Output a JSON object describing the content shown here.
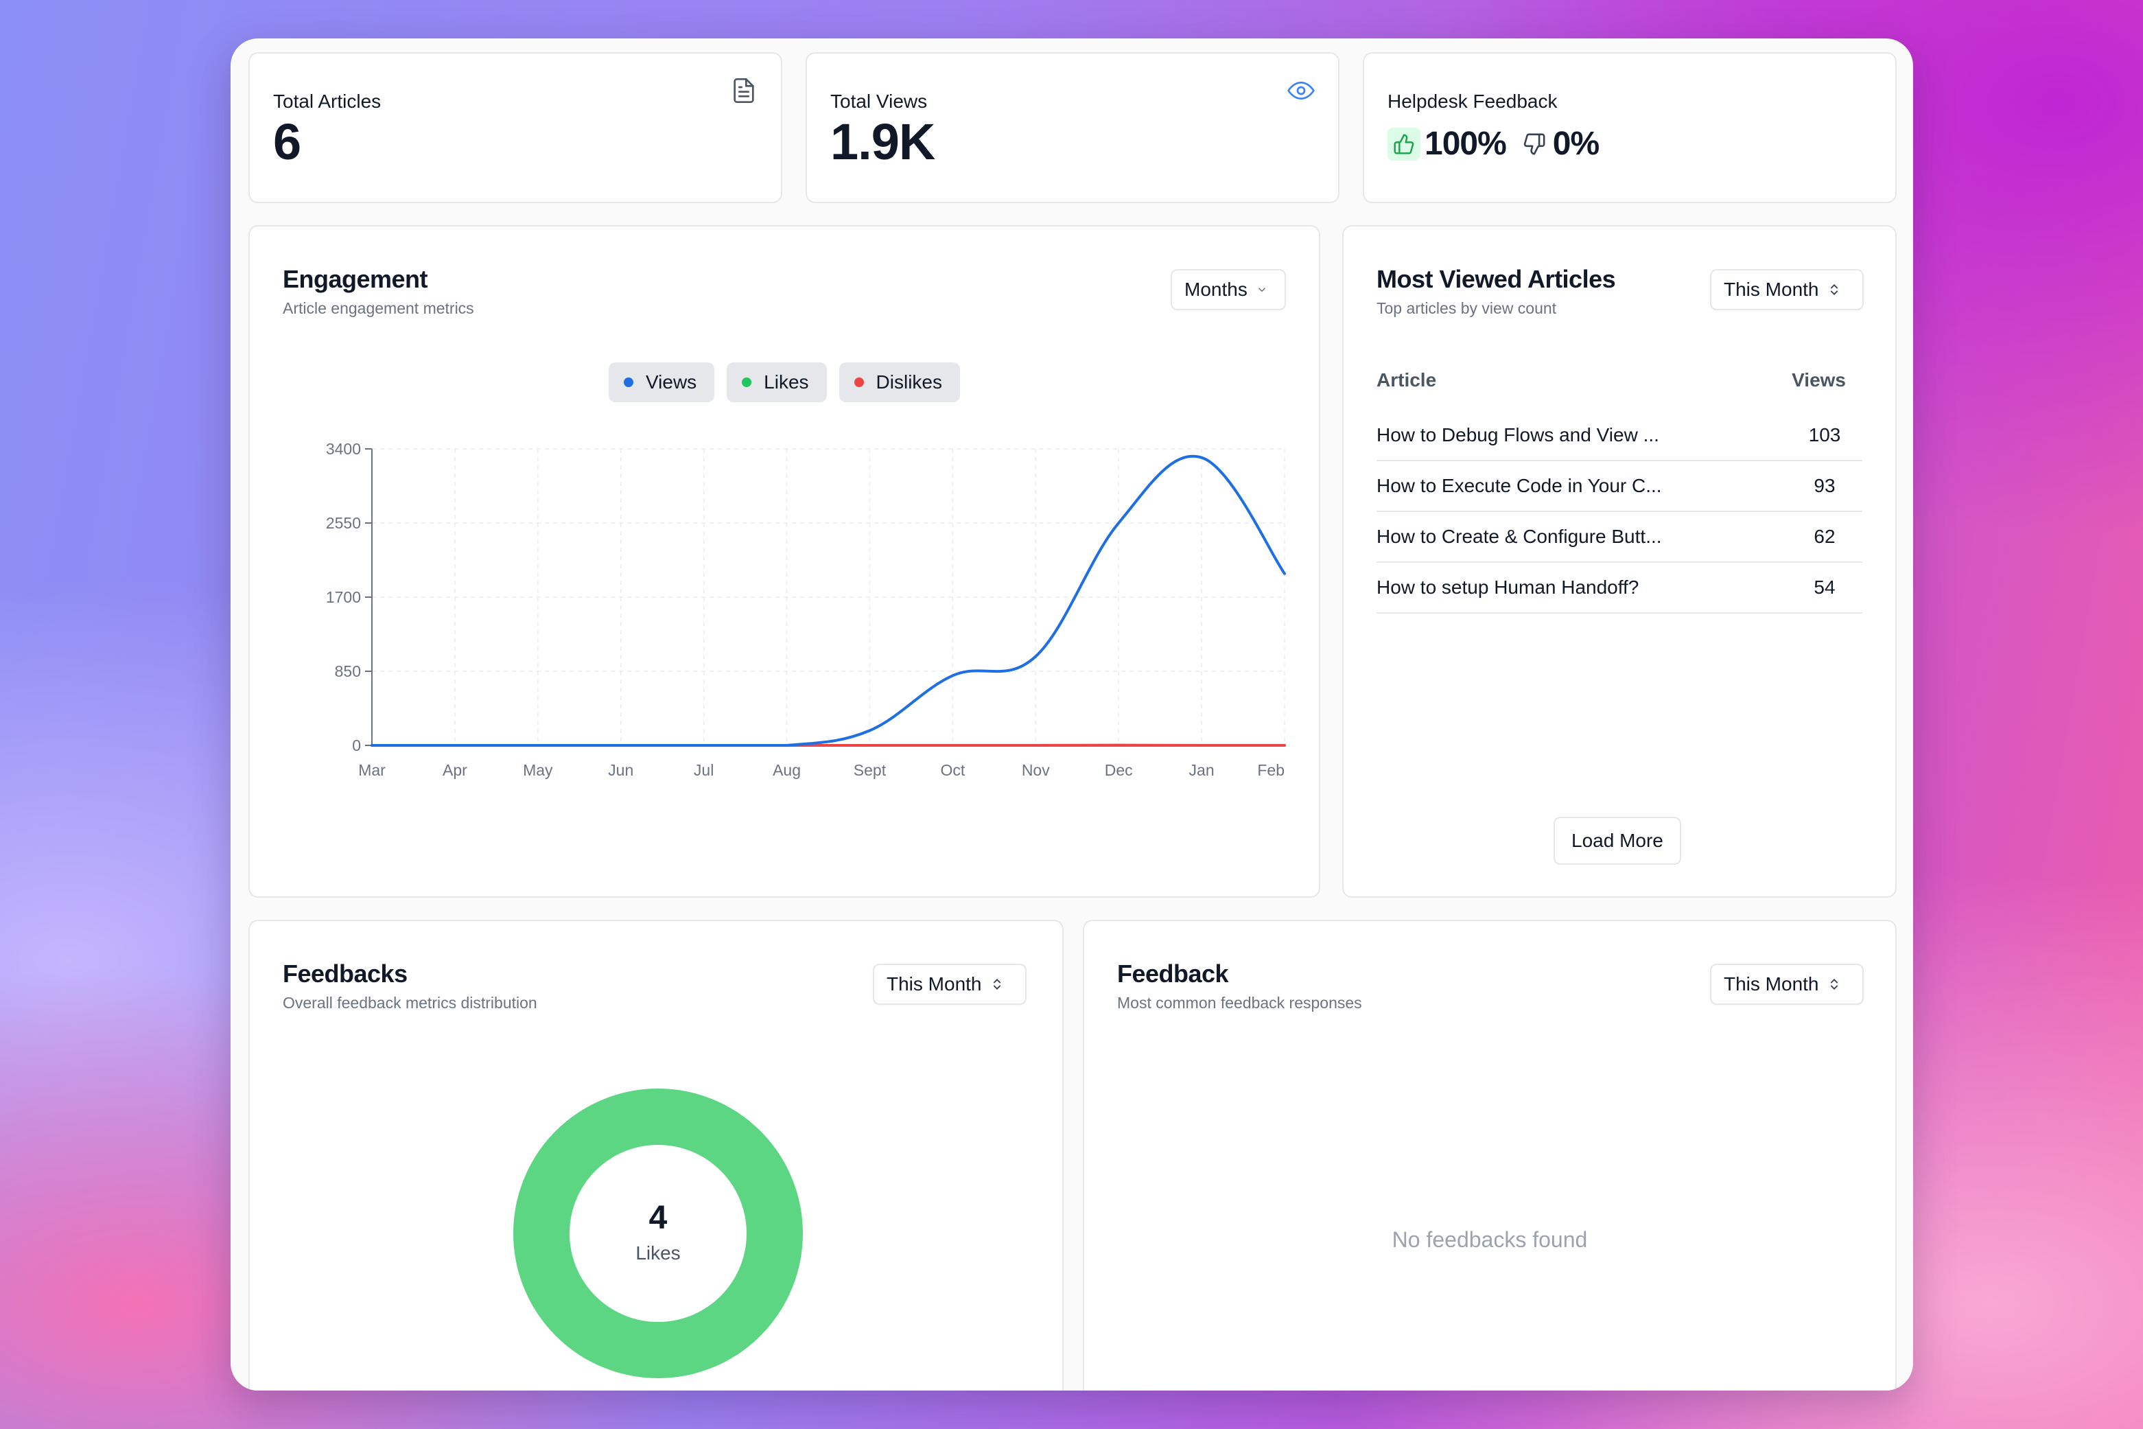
{
  "stats": {
    "total_articles": {
      "label": "Total Articles",
      "value": "6",
      "icon": "document-icon"
    },
    "total_views": {
      "label": "Total Views",
      "value": "1.9K",
      "icon": "eye-icon"
    },
    "helpdesk_feedback": {
      "label": "Helpdesk Feedback",
      "positive": "100%",
      "negative": "0%"
    }
  },
  "engagement": {
    "title": "Engagement",
    "subtitle": "Article engagement metrics",
    "period_select": "Months",
    "legend": [
      {
        "label": "Views",
        "color": "#1d6fe3"
      },
      {
        "label": "Likes",
        "color": "#22c55e"
      },
      {
        "label": "Dislikes",
        "color": "#ef4444"
      }
    ]
  },
  "most_viewed": {
    "title": "Most Viewed Articles",
    "subtitle": "Top articles by view count",
    "period_select": "This Month",
    "col_article": "Article",
    "col_views": "Views",
    "rows": [
      {
        "article": "How to Debug Flows and View ...",
        "views": "103"
      },
      {
        "article": "How to Execute Code in Your C...",
        "views": "93"
      },
      {
        "article": "How to Create & Configure Butt...",
        "views": "62"
      },
      {
        "article": "How to setup Human Handoff?",
        "views": "54"
      }
    ],
    "load_more": "Load More"
  },
  "feedbacks": {
    "title": "Feedbacks",
    "subtitle": "Overall feedback metrics distribution",
    "period_select": "This Month",
    "donut_value": "4",
    "donut_label": "Likes",
    "donut_color": "#5dd683"
  },
  "feedback": {
    "title": "Feedback",
    "subtitle": "Most common feedback responses",
    "period_select": "This Month",
    "empty_text": "No feedbacks found"
  },
  "chart_data": {
    "type": "line",
    "categories": [
      "Mar",
      "Apr",
      "May",
      "Jun",
      "Jul",
      "Aug",
      "Sept",
      "Oct",
      "Nov",
      "Dec",
      "Jan",
      "Feb"
    ],
    "y_ticks": [
      "0",
      "850",
      "1700",
      "2550",
      "3400"
    ],
    "ylim": [
      0,
      3400
    ],
    "grid": true,
    "series": [
      {
        "name": "Views",
        "color": "#1d6fe3",
        "values": [
          0,
          0,
          0,
          0,
          0,
          0,
          170,
          800,
          1020,
          2550,
          3300,
          1970
        ]
      },
      {
        "name": "Likes",
        "color": "#22c55e",
        "values": [
          0,
          0,
          0,
          0,
          0,
          0,
          0,
          0,
          0,
          4,
          0,
          0
        ]
      },
      {
        "name": "Dislikes",
        "color": "#ef4444",
        "values": [
          0,
          0,
          0,
          0,
          0,
          0,
          0,
          0,
          0,
          0,
          0,
          0
        ]
      }
    ]
  }
}
